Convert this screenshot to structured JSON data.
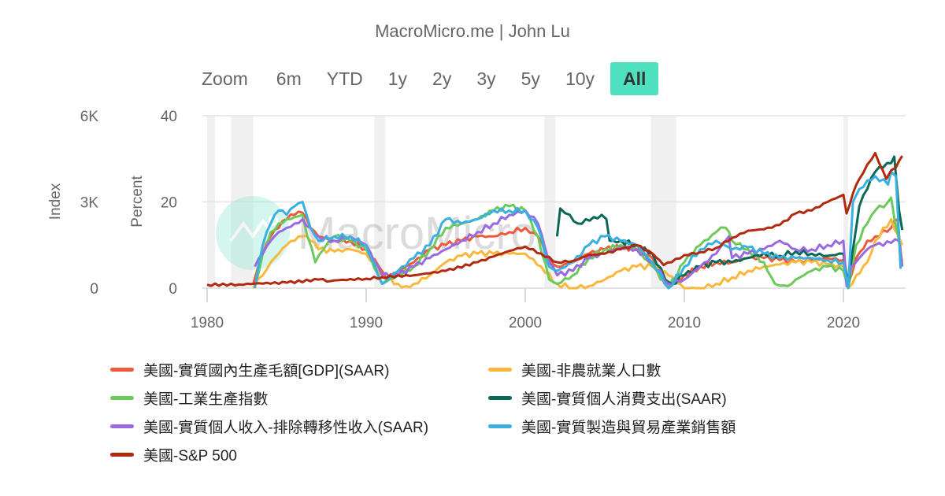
{
  "credit": "MacroMicro.me | John Lu",
  "range_selector": {
    "label": "Zoom",
    "buttons": [
      "6m",
      "YTD",
      "1y",
      "2y",
      "3y",
      "5y",
      "10y",
      "All"
    ],
    "active": "All",
    "active_color": "#4fe0c0"
  },
  "watermark": "MacroMicro",
  "chart_data": {
    "type": "line",
    "title": "",
    "xlabel": "",
    "x_ticks": [
      1980,
      1990,
      2000,
      2010,
      2020
    ],
    "xlim": [
      1980,
      2023.7
    ],
    "y_axes": [
      {
        "name": "Index",
        "ticks": [
          "0",
          "3K",
          "6K"
        ],
        "range": [
          0,
          6000
        ],
        "series": [
          "美國-S&P 500"
        ]
      },
      {
        "name": "Percent",
        "ticks": [
          "0",
          "20",
          "40"
        ],
        "range": [
          0,
          40
        ]
      }
    ],
    "grid": true,
    "legend_position": "bottom",
    "recession_bands": [
      [
        1980.0,
        1980.5
      ],
      [
        1981.5,
        1982.9
      ],
      [
        1990.5,
        1991.2
      ],
      [
        2001.2,
        2001.9
      ],
      [
        2007.9,
        2009.5
      ],
      [
        2020.0,
        2020.3
      ]
    ],
    "series": [
      {
        "name": "美國-實質國內生產毛額[GDP](SAAR)",
        "color": "#ee5a3a",
        "x": [
          1982.9,
          1983.5,
          1984,
          1984.5,
          1985,
          1985.5,
          1986,
          1986.5,
          1987,
          1988,
          1989,
          1990,
          1990.8,
          1991.3,
          1992,
          1993,
          1994,
          1995,
          1996,
          1997,
          1998,
          1999,
          2000,
          2000.8,
          2001.5,
          2002,
          2003,
          2004,
          2005,
          2006,
          2007,
          2008,
          2008.6,
          2009.2,
          2010,
          2011,
          2012,
          2013,
          2014,
          2015,
          2016,
          2017,
          2018,
          2019,
          2020.0,
          2020.3,
          2020.8,
          2021.5,
          2022,
          2023,
          2023.4,
          2023.7
        ],
        "y": [
          1.0,
          8,
          12,
          14,
          16,
          17,
          17.5,
          14,
          12,
          11,
          11,
          9,
          5,
          2,
          4,
          6,
          9,
          10,
          11,
          12,
          12,
          13,
          14,
          12,
          7,
          5,
          6,
          8,
          9,
          9.5,
          9,
          7,
          2,
          1,
          3,
          5,
          6,
          6,
          7,
          7,
          6.5,
          6,
          6.5,
          7,
          6.5,
          1,
          7,
          11,
          12,
          14,
          16,
          5
        ]
      },
      {
        "name": "美國-非農就業人口數",
        "color": "#f9b83b",
        "x": [
          1982.9,
          1983.5,
          1984,
          1984.5,
          1985,
          1985.5,
          1986,
          1986.5,
          1987,
          1988,
          1989,
          1990,
          1991,
          1992,
          1992.5,
          1993,
          1994,
          1995,
          1996,
          1997,
          1998,
          1999,
          2000,
          2001,
          2002,
          2003,
          2004,
          2005,
          2006,
          2007,
          2008,
          2009,
          2010,
          2011,
          2012,
          2013,
          2014,
          2015,
          2016,
          2017,
          2018,
          2019,
          2020.0,
          2020.3,
          2020.8,
          2021.5,
          2022,
          2023,
          2023.7
        ],
        "y": [
          0,
          3,
          6,
          8,
          10,
          11,
          12,
          11,
          9,
          8.5,
          9,
          8,
          3,
          1,
          0.5,
          1,
          3,
          6,
          7.5,
          8,
          8,
          8,
          8,
          5,
          1,
          0,
          0.5,
          2,
          4,
          5,
          5,
          3,
          0,
          0,
          1,
          2.5,
          4,
          5,
          5.5,
          6,
          6,
          5.5,
          5,
          0,
          3,
          6,
          11,
          16,
          10
        ]
      },
      {
        "name": "美國-工業生產指數",
        "color": "#6cc95c",
        "x": [
          1983,
          1983.5,
          1984,
          1984.5,
          1985,
          1985.5,
          1986,
          1986.3,
          1986.8,
          1987.5,
          1988,
          1989,
          1990,
          1991,
          1992,
          1993,
          1994,
          1995,
          1996,
          1997,
          1998,
          1999,
          2000,
          2000.8,
          2001.5,
          2002,
          2003,
          2004,
          2005,
          2006,
          2007,
          2008,
          2009,
          2010,
          2011,
          2012,
          2012.6,
          2013,
          2014,
          2015,
          2015.7,
          2016.5,
          2017,
          2018,
          2019,
          2020.0,
          2020.3,
          2020.8,
          2021.5,
          2022,
          2022.8,
          2023,
          2023.7
        ],
        "y": [
          0.5,
          8,
          13,
          15,
          16,
          16.5,
          17,
          12,
          6,
          10,
          12,
          11,
          9,
          1,
          3,
          5,
          9,
          14,
          15,
          16,
          18,
          19,
          18,
          12,
          2,
          1,
          3,
          7,
          9,
          10,
          9,
          5,
          0,
          6,
          10,
          13,
          14,
          11,
          9,
          6,
          1,
          0.5,
          2,
          4,
          5,
          4,
          0,
          10,
          15,
          18,
          20,
          21,
          6
        ]
      },
      {
        "name": "美國-實質個人消費支出(SAAR)",
        "color": "#0a6856",
        "x": [
          2002,
          2002.2,
          2002.8,
          2003.3,
          2003.8,
          2004.3,
          2004.8,
          2005.1,
          2005.3,
          2006,
          2007,
          2008,
          2008.8,
          2009.2,
          2010,
          2011,
          2012,
          2013,
          2014,
          2015,
          2016,
          2017,
          2018,
          2019,
          2020.0,
          2020.3,
          2020.8,
          2021,
          2021.5,
          2022,
          2022.5,
          2023,
          2023.2,
          2023.5,
          2023.7
        ],
        "y": [
          12,
          18.5,
          17,
          15,
          16,
          16.5,
          17,
          16,
          11,
          11,
          10,
          8,
          2,
          1,
          3,
          5,
          6,
          6,
          7,
          8,
          7.5,
          8.5,
          8,
          7.5,
          8,
          0.5,
          14,
          19,
          23,
          27,
          28,
          29,
          30.5,
          18,
          13.5
        ]
      },
      {
        "name": "美國-實質個人收入-排除轉移性收入(SAAR)",
        "color": "#9a6ae0",
        "x": [
          1983,
          1983.5,
          1984,
          1984.5,
          1985,
          1985.5,
          1986,
          1986.5,
          1987,
          1988,
          1989,
          1990,
          1991,
          1992,
          1993,
          1994,
          1995,
          1996,
          1997,
          1998,
          1999,
          2000,
          2000.8,
          2001.5,
          2002,
          2003,
          2004,
          2005,
          2006,
          2007,
          2008,
          2009,
          2010,
          2011,
          2012,
          2012.8,
          2012.9,
          2013,
          2014,
          2015,
          2016,
          2017,
          2018,
          2019,
          2020.0,
          2020.2,
          2020.5,
          2021,
          2021.5,
          2022,
          2023,
          2023.5,
          2023.7
        ],
        "y": [
          5,
          8,
          11,
          13,
          14,
          15,
          16,
          14,
          12,
          11,
          12,
          10,
          3,
          3,
          5,
          7,
          9,
          11,
          13,
          15,
          17,
          18,
          15,
          6,
          3,
          4,
          7,
          8,
          9.5,
          9,
          6,
          1,
          2,
          5,
          8,
          12,
          9,
          7,
          8,
          9,
          11,
          9,
          9,
          10,
          11,
          0.5,
          5,
          7,
          9,
          10,
          10.5,
          11,
          5
        ]
      },
      {
        "name": "美國-實質製造與貿易產業銷售額",
        "color": "#3ab0e0",
        "x": [
          1983,
          1983.5,
          1984,
          1984.5,
          1985,
          1985.5,
          1986,
          1986.5,
          1987,
          1988,
          1989,
          1990,
          1991,
          1992,
          1993,
          1994,
          1995,
          1996,
          1997,
          1998,
          1999,
          2000,
          2000.8,
          2001.5,
          2002,
          2003,
          2004,
          2005,
          2006,
          2007,
          2008,
          2009,
          2010,
          2011,
          2012,
          2013,
          2014,
          2015,
          2016,
          2017,
          2018,
          2019,
          2020.0,
          2020.3,
          2020.6,
          2021,
          2021.5,
          2022,
          2022.8,
          2023,
          2023.3,
          2023.6
        ],
        "y": [
          0,
          10,
          15,
          18,
          17,
          19,
          20,
          14,
          11,
          12,
          12,
          10,
          1,
          4,
          7,
          10,
          16,
          15,
          16,
          18,
          18,
          18,
          14,
          5,
          4,
          6,
          10,
          12,
          11,
          10,
          6,
          0,
          5,
          9,
          11,
          9,
          9.5,
          8,
          7,
          7,
          7,
          6.5,
          6,
          0,
          20,
          23,
          25,
          26,
          24,
          27,
          26,
          4.5
        ]
      },
      {
        "name": "美國-S&P 500",
        "color": "#b22a0e",
        "axis": "Index",
        "x": [
          1980,
          1982,
          1983,
          1985,
          1987,
          1987.8,
          1988,
          1990,
          1991,
          1993,
          1995,
          1997,
          1998,
          1999,
          2000,
          2001,
          2002,
          2003,
          2004,
          2005,
          2006,
          2007,
          2008,
          2008.7,
          2009.2,
          2010,
          2011,
          2012,
          2013,
          2014,
          2015,
          2016,
          2017,
          2018,
          2019,
          2020.0,
          2020.2,
          2020.6,
          2021,
          2021.5,
          2022,
          2022.7,
          2023,
          2023.3,
          2023.7
        ],
        "y": [
          120,
          125,
          160,
          190,
          300,
          250,
          270,
          330,
          380,
          450,
          600,
          900,
          1100,
          1300,
          1450,
          1200,
          900,
          950,
          1150,
          1200,
          1350,
          1500,
          1200,
          800,
          900,
          1150,
          1250,
          1400,
          1750,
          2000,
          2050,
          2200,
          2600,
          2700,
          3000,
          3250,
          2600,
          3300,
          3800,
          4300,
          4700,
          3800,
          4100,
          4200,
          4600
        ]
      }
    ]
  },
  "legend": [
    {
      "label": "美國-實質國內生產毛額[GDP](SAAR)",
      "color": "#ee5a3a"
    },
    {
      "label": "美國-非農就業人口數",
      "color": "#f9b83b"
    },
    {
      "label": "美國-工業生產指數",
      "color": "#6cc95c"
    },
    {
      "label": "美國-實質個人消費支出(SAAR)",
      "color": "#0a6856"
    },
    {
      "label": "美國-實質個人收入-排除轉移性收入(SAAR)",
      "color": "#9a6ae0"
    },
    {
      "label": "美國-實質製造與貿易產業銷售額",
      "color": "#3ab0e0"
    },
    {
      "label": "美國-S&P 500",
      "color": "#b22a0e"
    }
  ]
}
